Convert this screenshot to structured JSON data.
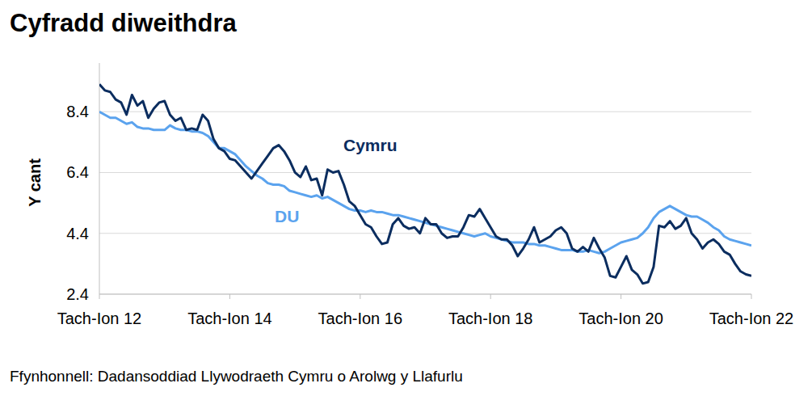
{
  "chart_data": {
    "type": "line",
    "title": "Cyfradd diweithdra",
    "y_label": "Y cant",
    "source": "Ffynhonnell: Dadansoddiad Llywodraeth Cymru o Arolwg y Llafurlu",
    "categories": [
      "Tach-Ion 12",
      null,
      null,
      null,
      null,
      null,
      null,
      null,
      null,
      null,
      null,
      null,
      null,
      null,
      null,
      null,
      null,
      null,
      null,
      null,
      null,
      null,
      null,
      null,
      "Tach-Ion 14",
      null,
      null,
      null,
      null,
      null,
      null,
      null,
      null,
      null,
      null,
      null,
      null,
      null,
      null,
      null,
      null,
      null,
      null,
      null,
      null,
      null,
      null,
      null,
      "Tach-Ion 16",
      null,
      null,
      null,
      null,
      null,
      null,
      null,
      null,
      null,
      null,
      null,
      null,
      null,
      null,
      null,
      null,
      null,
      null,
      null,
      null,
      null,
      null,
      null,
      "Tach-Ion 18",
      null,
      null,
      null,
      null,
      null,
      null,
      null,
      null,
      null,
      null,
      null,
      null,
      null,
      null,
      null,
      null,
      null,
      null,
      null,
      null,
      null,
      null,
      null,
      "Tach-Ion 20",
      null,
      null,
      null,
      null,
      null,
      null,
      null,
      null,
      null,
      null,
      null,
      null,
      null,
      null,
      null,
      null,
      null,
      null,
      null,
      null,
      null,
      null,
      null,
      "Tach-Ion 22"
    ],
    "series": [
      {
        "name": "Cymru",
        "color": "#0b2d5f",
        "values": [
          9.3,
          9.1,
          9.05,
          8.8,
          8.7,
          8.3,
          8.95,
          8.6,
          8.75,
          8.2,
          8.5,
          8.7,
          8.75,
          8.3,
          8.1,
          8.2,
          7.8,
          7.85,
          7.8,
          8.3,
          8.1,
          7.5,
          7.2,
          7.1,
          6.85,
          6.8,
          6.6,
          6.4,
          6.2,
          6.45,
          6.7,
          6.95,
          7.2,
          7.3,
          7.1,
          6.8,
          6.4,
          6.25,
          6.6,
          6.15,
          6.2,
          5.65,
          6.5,
          6.4,
          6.45,
          6.0,
          5.45,
          5.3,
          5.0,
          4.7,
          4.6,
          4.3,
          4.05,
          4.1,
          4.7,
          4.9,
          4.65,
          4.55,
          4.6,
          4.4,
          4.9,
          4.7,
          4.7,
          4.4,
          4.25,
          4.3,
          4.3,
          4.6,
          5.0,
          4.95,
          5.2,
          4.9,
          4.6,
          4.3,
          4.2,
          4.2,
          4.0,
          3.65,
          3.9,
          4.2,
          4.6,
          4.1,
          4.2,
          4.3,
          4.5,
          4.6,
          4.4,
          3.9,
          3.8,
          3.95,
          3.8,
          4.25,
          3.9,
          3.6,
          3.0,
          2.95,
          3.3,
          3.65,
          3.2,
          3.05,
          2.75,
          2.8,
          3.3,
          4.65,
          4.6,
          4.8,
          4.55,
          4.65,
          4.9,
          4.4,
          4.2,
          3.9,
          4.1,
          4.2,
          4.05,
          3.8,
          3.7,
          3.4,
          3.15,
          3.05,
          3.0
        ]
      },
      {
        "name": "DU",
        "color": "#5ba3ee",
        "values": [
          8.4,
          8.3,
          8.2,
          8.2,
          8.1,
          8.0,
          8.05,
          7.9,
          7.85,
          7.85,
          7.8,
          7.8,
          7.8,
          7.95,
          7.85,
          7.8,
          7.8,
          7.75,
          7.75,
          7.7,
          7.6,
          7.4,
          7.2,
          7.2,
          7.1,
          7.0,
          6.8,
          6.6,
          6.45,
          6.3,
          6.2,
          6.05,
          6.0,
          6.0,
          5.95,
          5.8,
          5.75,
          5.7,
          5.65,
          5.6,
          5.65,
          5.55,
          5.6,
          5.5,
          5.4,
          5.3,
          5.2,
          5.15,
          5.15,
          5.1,
          5.15,
          5.1,
          5.1,
          5.05,
          5.0,
          5.0,
          4.95,
          4.9,
          4.85,
          4.8,
          4.75,
          4.7,
          4.65,
          4.6,
          4.55,
          4.5,
          4.45,
          4.4,
          4.35,
          4.3,
          4.35,
          4.4,
          4.3,
          4.25,
          4.2,
          4.15,
          4.1,
          4.1,
          4.1,
          4.05,
          4.05,
          4.0,
          4.0,
          3.95,
          3.9,
          3.85,
          3.85,
          3.85,
          3.8,
          3.8,
          3.85,
          3.8,
          3.75,
          3.8,
          3.9,
          4.0,
          4.1,
          4.15,
          4.2,
          4.25,
          4.4,
          4.6,
          4.9,
          5.1,
          5.2,
          5.3,
          5.2,
          5.1,
          5.0,
          4.95,
          4.95,
          4.85,
          4.75,
          4.6,
          4.5,
          4.3,
          4.2,
          4.15,
          4.1,
          4.05,
          4.0
        ]
      }
    ],
    "ylim": [
      2.4,
      10.0
    ],
    "yticks": [
      2.4,
      4.4,
      6.4,
      8.4
    ],
    "grid": true
  }
}
